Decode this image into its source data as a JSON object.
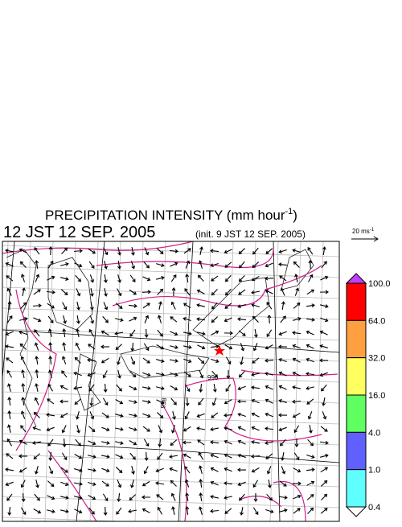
{
  "title": {
    "main": "PRECIPITATION INTENSITY (mm hour",
    "sup": "-1",
    "end": ")"
  },
  "valid_time": "12 JST 12 SEP. 2005",
  "init_time": "(init. 9 JST 12 SEP. 2005)",
  "wind_scale": {
    "label": "20 ms",
    "sup": "-1"
  },
  "colorbar": {
    "labels": [
      "100.0",
      "64.0",
      "32.0",
      "16.0",
      "4.0",
      "1.0",
      "0.4"
    ],
    "colors": [
      "#ff0000",
      "#ffa040",
      "#ffff60",
      "#60ff60",
      "#6060ff",
      "#60ffff"
    ],
    "over_color": "#c040ff",
    "under_color": "#ffffff"
  },
  "contour_labels": [
    "996",
    "998"
  ]
}
